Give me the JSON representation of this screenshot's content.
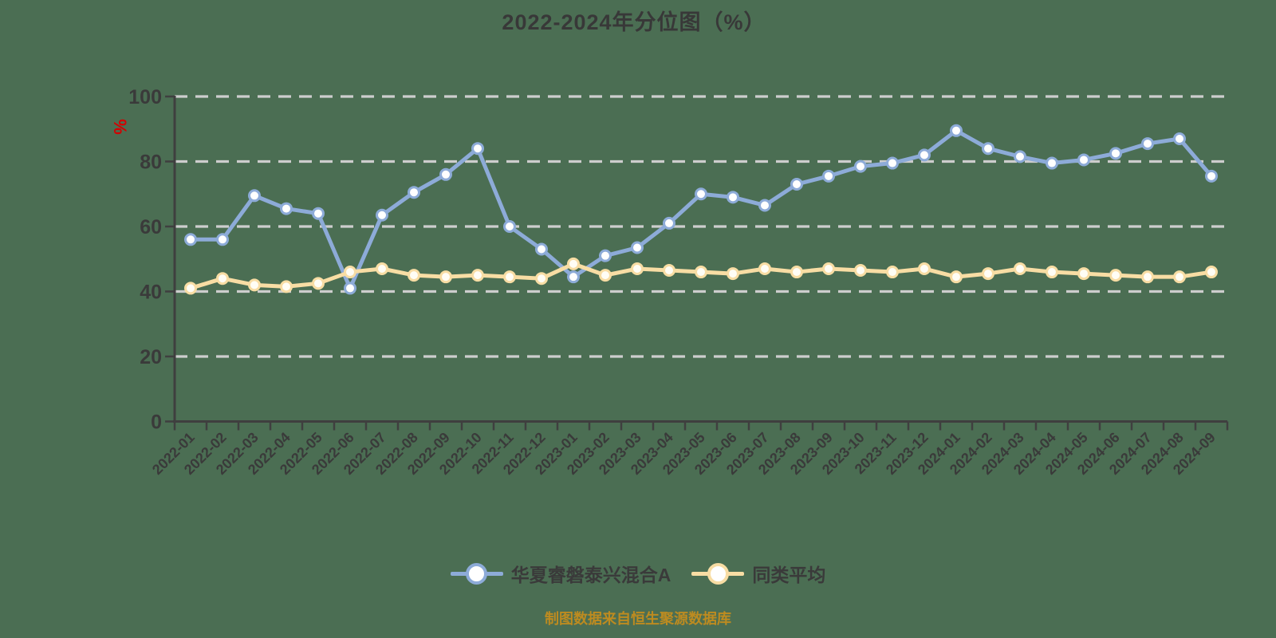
{
  "page": {
    "background": "#4b6e53"
  },
  "header": {
    "title": "2022-2024年分位图（%）",
    "unit_label": "%",
    "unit_color": "#d40000"
  },
  "legend": {
    "items": [
      {
        "name": "华夏睿磐泰兴混合A"
      },
      {
        "name": "同类平均"
      }
    ]
  },
  "footer": {
    "text": "制图数据来自恒生聚源数据库",
    "color": "#bd8b20"
  },
  "chart_data": {
    "type": "line",
    "title": "2022-2024年分位图（%）",
    "ylabel": "%",
    "xlabel": "",
    "ylim": [
      0,
      100
    ],
    "yticks": [
      0,
      20,
      40,
      60,
      80,
      100
    ],
    "grid": "horizontal dashed",
    "legend_position": "bottom",
    "axis_color": "#3f3f3f",
    "grid_color": "#cdcdcd",
    "categories": [
      "2022-01",
      "2022-02",
      "2022-03",
      "2022-04",
      "2022-05",
      "2022-06",
      "2022-07",
      "2022-08",
      "2022-09",
      "2022-10",
      "2022-11",
      "2022-12",
      "2023-01",
      "2023-02",
      "2023-03",
      "2023-04",
      "2023-05",
      "2023-06",
      "2023-07",
      "2023-08",
      "2023-09",
      "2023-10",
      "2023-11",
      "2023-12",
      "2024-01",
      "2024-02",
      "2024-03",
      "2024-04",
      "2024-05",
      "2024-06",
      "2024-07",
      "2024-08",
      "2024-09"
    ],
    "series": [
      {
        "name": "华夏睿磐泰兴混合A",
        "color": "#8dabd8",
        "marker_fill": "#ffffff",
        "values": [
          56,
          56,
          69.5,
          65.5,
          64,
          41,
          63.5,
          70.5,
          76,
          84,
          60,
          53,
          44.5,
          51,
          53.5,
          61,
          70,
          69,
          66.5,
          73,
          75.5,
          78.5,
          79.5,
          82,
          89.5,
          84,
          81.5,
          79.5,
          80.5,
          82.5,
          85.5,
          87,
          75.5
        ]
      },
      {
        "name": "同类平均",
        "color": "#f8dda4",
        "marker_fill": "#fffdf5",
        "values": [
          41,
          44,
          42,
          41.5,
          42.5,
          46,
          47,
          45,
          44.5,
          45,
          44.5,
          44,
          48.5,
          45,
          47,
          46.5,
          46,
          45.5,
          47,
          46,
          47,
          46.5,
          46,
          47,
          44.5,
          45.5,
          47,
          46,
          45.5,
          45,
          44.5,
          44.5,
          46
        ]
      }
    ]
  }
}
